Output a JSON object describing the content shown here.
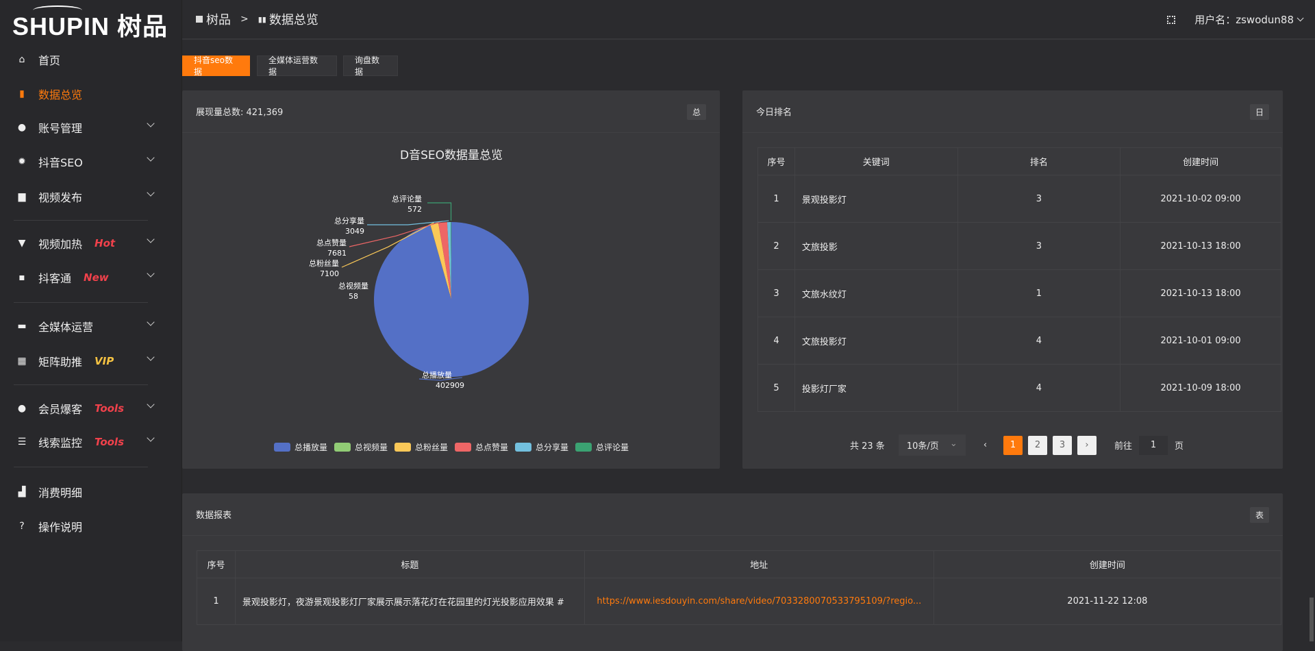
{
  "brand": {
    "logo_text": "SHUPIN",
    "logo_cn": "树品"
  },
  "sidebar": {
    "items": [
      {
        "label": "首页",
        "icon": "home-icon"
      },
      {
        "label": "数据总览",
        "icon": "bar-chart-icon",
        "active": true
      },
      {
        "label": "账号管理",
        "icon": "user-icon",
        "chevron": true
      },
      {
        "label": "抖音SEO",
        "icon": "gear-icon",
        "chevron": true
      },
      {
        "label": "视频发布",
        "icon": "camera-icon",
        "chevron": true
      },
      {
        "label": "视频加热",
        "icon": "monitor-stand-icon",
        "chevron": true,
        "badge": "Hot"
      },
      {
        "label": "抖客通",
        "icon": "chat-icon",
        "chevron": true,
        "badge": "New"
      },
      {
        "label": "全媒体运营",
        "icon": "desktop-icon",
        "chevron": true
      },
      {
        "label": "矩阵助推",
        "icon": "grid-icon",
        "chevron": true,
        "badge": "VIP"
      },
      {
        "label": "会员爆客",
        "icon": "user-icon",
        "chevron": true,
        "badge": "Tools"
      },
      {
        "label": "线索监控",
        "icon": "sliders-icon",
        "chevron": true,
        "badge": "Tools"
      },
      {
        "label": "消费明细",
        "icon": "wallet-icon"
      },
      {
        "label": "操作说明",
        "icon": "help-icon"
      }
    ]
  },
  "header": {
    "breadcrumb": [
      "树品",
      "数据总览"
    ],
    "sep": ">",
    "user_label": "用户名：zswodun88"
  },
  "tabs": [
    "抖音seo数据",
    "全媒体运营数据",
    "询盘数据"
  ],
  "card_pie": {
    "title": "展现量总数: 421,369",
    "tag": "总"
  },
  "chart_data": {
    "type": "pie",
    "title": "D音SEO数据量总览",
    "legend_position": "bottom",
    "slices": [
      {
        "name": "总播放量",
        "value": 402909,
        "color": "#5470c6"
      },
      {
        "name": "总视频量",
        "value": 58,
        "color": "#91cc75"
      },
      {
        "name": "总粉丝量",
        "value": 7100,
        "color": "#fac858"
      },
      {
        "name": "总点赞量",
        "value": 7681,
        "color": "#ee6666"
      },
      {
        "name": "总分享量",
        "value": 3049,
        "color": "#73c0de"
      },
      {
        "name": "总评论量",
        "value": 572,
        "color": "#3ba272"
      }
    ]
  },
  "card_rank": {
    "title": "今日排名",
    "tag": "日",
    "columns": [
      "序号",
      "关键词",
      "排名",
      "创建时间"
    ],
    "rows": [
      [
        "1",
        "景观投影灯",
        "3",
        "2021-10-02 09:00"
      ],
      [
        "2",
        "文旅投影",
        "3",
        "2021-10-13 18:00"
      ],
      [
        "3",
        "文旅水纹灯",
        "1",
        "2021-10-13 18:00"
      ],
      [
        "4",
        "文旅投影灯",
        "4",
        "2021-10-01 09:00"
      ],
      [
        "5",
        "投影灯厂家",
        "4",
        "2021-10-09 18:00"
      ]
    ],
    "pagination": {
      "total": "共 23 条",
      "page_size": "10条/页",
      "pages": [
        "1",
        "2",
        "3"
      ],
      "current": "1",
      "goto_label": "前往",
      "goto_value": "1",
      "goto_suffix": "页"
    }
  },
  "card_report": {
    "title": "数据报表",
    "tag": "表",
    "columns": [
      "序号",
      "标题",
      "地址",
      "创建时间"
    ],
    "rows": [
      [
        "1",
        "景观投影灯，夜游景观投影灯厂家展示展示落花灯在花园里的灯光投影应用效果 #",
        "https://www.iesdouyin.com/share/video/7033280070533795109/?regio...",
        "2021-11-22 12:08"
      ]
    ]
  }
}
